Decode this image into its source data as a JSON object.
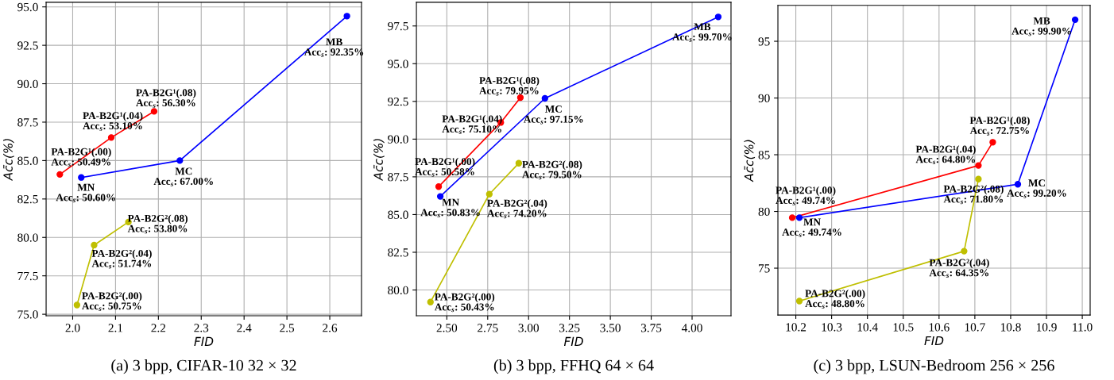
{
  "chart_data": [
    {
      "type": "line",
      "xlabel": "FID",
      "ylabel": "Ac̄c(%)",
      "marker": "circle",
      "grid": true,
      "xlim": [
        1.938,
        2.674
      ],
      "ylim": [
        74.9,
        95.3
      ],
      "xticks": [
        {
          "value": 2.0,
          "label": "2.0"
        },
        {
          "value": 2.1,
          "label": "2.1"
        },
        {
          "value": 2.2,
          "label": "2.2"
        },
        {
          "value": 2.3,
          "label": "2.3"
        },
        {
          "value": 2.4,
          "label": "2.4"
        },
        {
          "value": 2.5,
          "label": "2.5"
        },
        {
          "value": 2.6,
          "label": "2.6"
        }
      ],
      "yticks": [
        {
          "value": 75,
          "label": "75.0"
        },
        77.5,
        {
          "value": 80,
          "label": "80.0"
        },
        82.5,
        {
          "value": 85,
          "label": "85.0"
        },
        87.5,
        {
          "value": 90,
          "label": "90.0"
        },
        92.5,
        {
          "value": 95,
          "label": "95.0"
        }
      ],
      "series": [
        {
          "color": "#ff0000",
          "x": [
            1.97,
            2.09,
            2.19
          ],
          "values": [
            84.1,
            86.5,
            88.2
          ]
        },
        {
          "color": "#0000ff",
          "x": [
            2.02,
            2.25,
            2.64
          ],
          "values": [
            83.9,
            85.0,
            94.4
          ]
        },
        {
          "color": "#bfbf00",
          "x": [
            2.01,
            2.05,
            2.13
          ],
          "values": [
            75.6,
            79.5,
            81.0
          ]
        }
      ],
      "annotations": [
        {
          "text": "PA-B2G¹(.00)\nAcc$_{s}$: 50.49%",
          "x": 1.97,
          "y": 84.1
        },
        {
          "text": "PA-B2G¹(.04)\nAcc$_{s}$: 53.10%",
          "x": 2.09,
          "y": 86.5
        },
        {
          "text": "PA-B2G¹(.08)\nAcc$_{s}$: 56.30%",
          "x": 2.19,
          "y": 88.2
        },
        {
          "text": "MN\nAcc$_{s}$: 50.60%",
          "x": 2.02,
          "y": 83.9
        },
        {
          "text": "MC\nAcc$_{s}$: 67.00%",
          "x": 2.25,
          "y": 85.0
        },
        {
          "text": "MB\nAcc$_{s}$: 92.35%",
          "x": 2.64,
          "y": 94.4
        },
        {
          "text": "PA-B2G²(.00)\nAcc$_{s}$: 50.75%",
          "x": 2.01,
          "y": 75.6
        },
        {
          "text": "PA-B2G²(.04)\nAcc$_{s}$: 51.74%",
          "x": 2.05,
          "y": 79.5
        },
        {
          "text": "PA-B2G²(.08)\nAcc$_{s}$: 53.80%",
          "x": 2.13,
          "y": 81.0
        },
        "(a) 3 bpp, CIFAR-10 32 × 32"
      ]
    },
    {
      "type": "line",
      "xlabel": "FID",
      "ylabel": "Ac̄c(%)",
      "marker": "circle",
      "grid": true,
      "xlim": [
        2.314,
        4.238
      ],
      "ylim": [
        78.29,
        99.07
      ],
      "xticks": [
        {
          "value": 2.5,
          "label": "2.50"
        },
        2.75,
        {
          "value": 3.0,
          "label": "3.00"
        },
        3.25,
        {
          "value": 3.5,
          "label": "3.50"
        },
        3.75,
        {
          "value": 4.0,
          "label": "4.00"
        }
      ],
      "yticks": [
        {
          "value": 80,
          "label": "80.0"
        },
        82.5,
        {
          "value": 85,
          "label": "85.0"
        },
        87.5,
        {
          "value": 90,
          "label": "90.0"
        },
        92.5,
        {
          "value": 95,
          "label": "95.0"
        },
        97.5
      ],
      "series": [
        {
          "color": "#ff0000",
          "x": [
            2.45,
            2.83,
            2.95
          ],
          "values": [
            86.85,
            91.1,
            92.75
          ]
        },
        {
          "color": "#0000ff",
          "x": [
            2.46,
            3.1,
            4.16
          ],
          "values": [
            86.2,
            92.7,
            98.1
          ]
        },
        {
          "color": "#bfbf00",
          "x": [
            2.4,
            2.76,
            2.94
          ],
          "values": [
            79.2,
            86.35,
            88.4
          ]
        }
      ],
      "annotations": [
        {
          "text": "PA-B2G¹(.00)\nAcc$_{s}$: 50.58%",
          "x": 2.45,
          "y": 86.85
        },
        {
          "text": "PA-B2G¹(.04)\nAcc$_{s}$: 75.10%",
          "x": 2.83,
          "y": 91.1
        },
        {
          "text": "PA-B2G¹(.08)\nAcc$_{s}$: 79.95%",
          "x": 2.95,
          "y": 92.75
        },
        {
          "text": "MN\nAcc$_{s}$: 50.83%",
          "x": 2.46,
          "y": 86.2
        },
        {
          "text": "MC\nAcc$_{s}$: 97.15%",
          "x": 3.1,
          "y": 92.7
        },
        {
          "text": "MB\nAcc$_{s}$: 99.70%",
          "x": 4.16,
          "y": 98.1
        },
        {
          "text": "PA-B2G²(.00)\nAcc$_{s}$: 50.43%",
          "x": 2.4,
          "y": 79.2
        },
        {
          "text": "PA-B2G²(.04)\nAcc$_{s}$: 74.20%",
          "x": 2.76,
          "y": 86.35
        },
        {
          "text": "PA-B2G²(.08)\nAcc$_{s}$: 79.50%",
          "x": 2.94,
          "y": 88.4
        },
        "(b) 3 bpp, FFHQ 64 × 64"
      ]
    },
    {
      "type": "line",
      "xlabel": "FID",
      "ylabel": "Ac̄c(%)",
      "marker": "circle",
      "grid": true,
      "xlim": [
        10.15,
        11.022
      ],
      "ylim": [
        70.87,
        98.17
      ],
      "xticks": [
        10.2,
        10.3,
        10.4,
        10.5,
        10.6,
        10.7,
        10.8,
        10.9,
        {
          "value": 11.0,
          "label": "11.0"
        }
      ],
      "yticks": [
        75,
        80,
        85,
        90,
        95
      ],
      "series": [
        {
          "color": "#ff0000",
          "x": [
            10.19,
            10.71,
            10.75
          ],
          "values": [
            79.45,
            84.05,
            86.1
          ]
        },
        {
          "color": "#0000ff",
          "x": [
            10.21,
            10.82,
            10.98
          ],
          "values": [
            79.45,
            82.4,
            96.9
          ]
        },
        {
          "color": "#bfbf00",
          "x": [
            10.21,
            10.67,
            10.71
          ],
          "values": [
            72.1,
            76.5,
            82.85
          ]
        }
      ],
      "annotations": [
        {
          "text": "PA-B2G¹(.00)\nAcc$_{s}$: 49.74%",
          "x": 10.19,
          "y": 79.45
        },
        {
          "text": "PA-B2G¹(.04)\nAcc$_{s}$: 64.80%",
          "x": 10.71,
          "y": 84.05
        },
        {
          "text": "PA-B2G¹(.08)\nAcc$_{s}$: 72.75%",
          "x": 10.75,
          "y": 86.1
        },
        {
          "text": "MN\nAcc$_{s}$: 49.74%",
          "x": 10.21,
          "y": 79.45
        },
        {
          "text": "MC\nAcc$_{s}$: 99.20%",
          "x": 10.82,
          "y": 82.4
        },
        {
          "text": "MB\nAcc$_{s}$: 99.90%",
          "x": 10.98,
          "y": 96.9
        },
        {
          "text": "PA-B2G²(.00)\nAcc$_{s}$: 48.80%",
          "x": 10.21,
          "y": 72.1
        },
        {
          "text": "PA-B2G²(.04)\nAcc$_{s}$: 64.35%",
          "x": 10.67,
          "y": 76.5
        },
        {
          "text": "PA-B2G²(.08)\nAcc$_{s}$: 71.80%",
          "x": 10.71,
          "y": 82.85
        },
        "(c) 3 bpp, LSUN-Bedroom 256 × 256"
      ]
    }
  ]
}
